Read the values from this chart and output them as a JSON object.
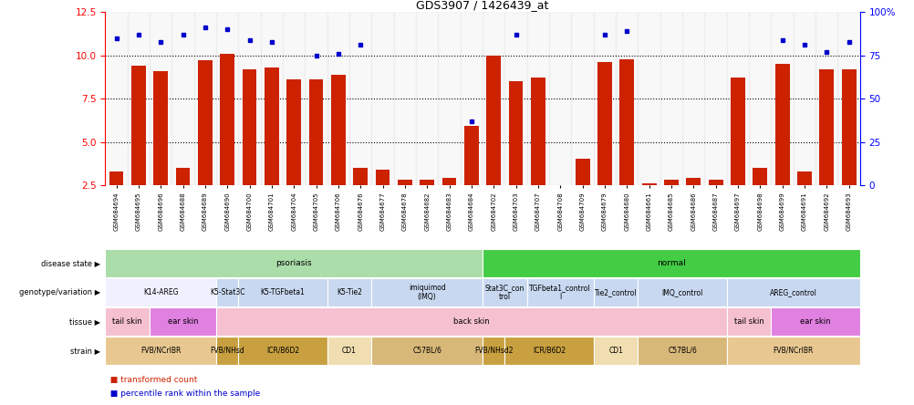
{
  "title": "GDS3907 / 1426439_at",
  "samples": [
    "GSM684694",
    "GSM684695",
    "GSM684696",
    "GSM684688",
    "GSM684689",
    "GSM684690",
    "GSM684700",
    "GSM684701",
    "GSM684704",
    "GSM684705",
    "GSM684706",
    "GSM684676",
    "GSM684677",
    "GSM684678",
    "GSM684682",
    "GSM684683",
    "GSM684684",
    "GSM684702",
    "GSM684703",
    "GSM684707",
    "GSM684708",
    "GSM684709",
    "GSM684679",
    "GSM684680",
    "GSM684661",
    "GSM684685",
    "GSM684686",
    "GSM684687",
    "GSM684697",
    "GSM684698",
    "GSM684699",
    "GSM684691",
    "GSM684692",
    "GSM684693"
  ],
  "red_values": [
    3.3,
    9.4,
    9.1,
    3.5,
    9.7,
    10.1,
    9.2,
    9.3,
    8.6,
    8.6,
    8.9,
    3.5,
    3.4,
    2.8,
    2.8,
    2.9,
    5.9,
    10.0,
    8.5,
    8.7,
    2.5,
    4.0,
    9.6,
    9.8,
    2.6,
    2.8,
    2.9,
    2.8,
    8.7,
    3.5,
    9.5,
    3.3,
    9.2,
    9.2
  ],
  "blue_values": [
    11.0,
    11.2,
    10.8,
    11.2,
    11.6,
    11.5,
    10.9,
    10.8,
    null,
    10.0,
    10.1,
    10.6,
    null,
    null,
    null,
    null,
    6.2,
    null,
    11.2,
    null,
    null,
    null,
    11.2,
    11.4,
    null,
    null,
    null,
    null,
    null,
    null,
    10.9,
    10.6,
    10.2,
    10.8
  ],
  "ylim_left": [
    2.5,
    12.5
  ],
  "ylim_right": [
    0,
    100
  ],
  "yticks_left": [
    2.5,
    5.0,
    7.5,
    10.0,
    12.5
  ],
  "yticks_right": [
    0,
    25,
    50,
    75,
    100
  ],
  "ytick_labels_right": [
    "0",
    "25",
    "50",
    "75",
    "100%"
  ],
  "genotype_variation": [
    {
      "label": "K14-AREG",
      "start": 0,
      "end": 5
    },
    {
      "label": "K5-Stat3C",
      "start": 5,
      "end": 6
    },
    {
      "label": "K5-TGFbeta1",
      "start": 6,
      "end": 10
    },
    {
      "label": "K5-Tie2",
      "start": 10,
      "end": 12
    },
    {
      "label": "imiquimod\n(IMQ)",
      "start": 12,
      "end": 17
    },
    {
      "label": "Stat3C_con\ntrol",
      "start": 17,
      "end": 19
    },
    {
      "label": "TGFbeta1_control\nl",
      "start": 19,
      "end": 22
    },
    {
      "label": "Tie2_control",
      "start": 22,
      "end": 24
    },
    {
      "label": "IMQ_control",
      "start": 24,
      "end": 28
    },
    {
      "label": "AREG_control",
      "start": 28,
      "end": 34
    }
  ],
  "tissue": [
    {
      "label": "tail skin",
      "start": 0,
      "end": 2
    },
    {
      "label": "ear skin",
      "start": 2,
      "end": 5
    },
    {
      "label": "back skin",
      "start": 5,
      "end": 28
    },
    {
      "label": "tail skin",
      "start": 28,
      "end": 30
    },
    {
      "label": "ear skin",
      "start": 30,
      "end": 34
    }
  ],
  "strain": [
    {
      "label": "FVB/NCrIBR",
      "start": 0,
      "end": 5
    },
    {
      "label": "FVB/NHsd",
      "start": 5,
      "end": 6
    },
    {
      "label": "ICR/B6D2",
      "start": 6,
      "end": 10
    },
    {
      "label": "CD1",
      "start": 10,
      "end": 12
    },
    {
      "label": "C57BL/6",
      "start": 12,
      "end": 17
    },
    {
      "label": "FVB/NHsd2",
      "start": 17,
      "end": 18
    },
    {
      "label": "ICR/B6D2_2",
      "start": 18,
      "end": 22
    },
    {
      "label": "CD1_2",
      "start": 22,
      "end": 24
    },
    {
      "label": "C57BL/6_2",
      "start": 24,
      "end": 28
    },
    {
      "label": "FVB/NCrIBR_2",
      "start": 28,
      "end": 34
    }
  ],
  "disease_state": [
    {
      "label": "psoriasis",
      "start": 0,
      "end": 17
    },
    {
      "label": "normal",
      "start": 17,
      "end": 34
    }
  ],
  "colors": {
    "red_bar": "#cc2200",
    "blue_dot": "#0000cc",
    "psoriasis_bg": "#aaddaa",
    "normal_bg": "#44cc44",
    "geno_white": "#f0f0ff",
    "geno_blue": "#c8d8f0",
    "tissue_pink": "#f5c0d0",
    "tissue_purple": "#e080e0",
    "strain_tan": "#e8c890",
    "strain_gold": "#c8a040",
    "strain_wheat": "#f0ddb0",
    "strain_tan2": "#d8b878"
  }
}
